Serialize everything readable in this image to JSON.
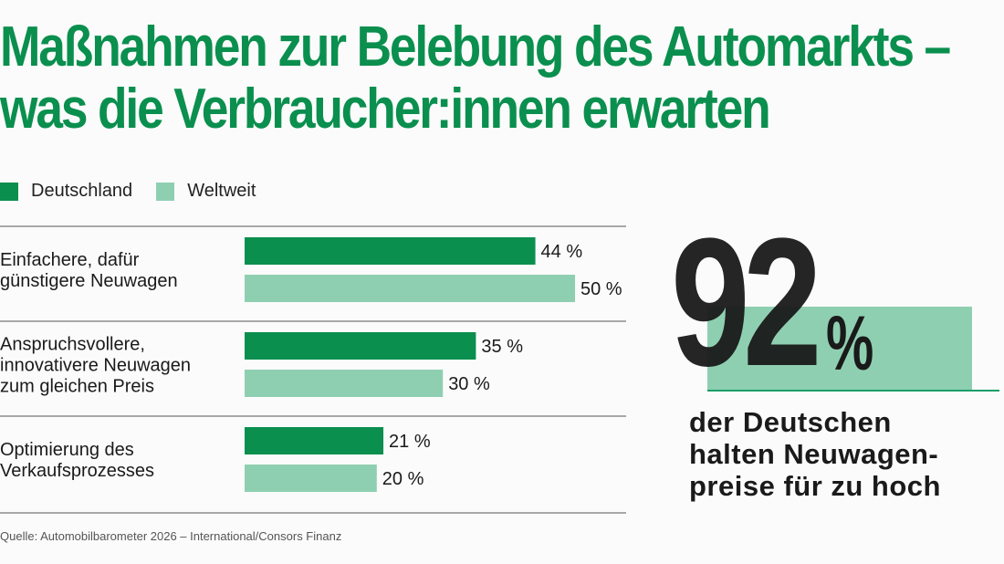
{
  "title": {
    "line1": "Maßnahmen zur Belebung des Automarkts –",
    "line2": "was die Verbraucher:innen erwarten"
  },
  "colors": {
    "deutschland": "#0a8f4e",
    "weltweit": "#8fcfb1",
    "title": "#0a8f4e"
  },
  "legend": {
    "deutschland": "Deutschland",
    "weltweit": "Weltweit"
  },
  "chart_data": {
    "type": "bar",
    "orientation": "horizontal",
    "categories": [
      [
        "Einfachere, dafür",
        "günstigere Neuwagen"
      ],
      [
        "Anspruchsvollere,",
        "innovativere Neuwagen",
        "zum gleichen Preis"
      ],
      [
        "Optimierung des",
        "Verkaufsprozesses"
      ]
    ],
    "series": [
      {
        "name": "Deutschland",
        "values": [
          44,
          35,
          21
        ],
        "labels": [
          "44 %",
          "35 %",
          "21 %"
        ]
      },
      {
        "name": "Weltweit",
        "values": [
          50,
          30,
          20
        ],
        "labels": [
          "50 %",
          "30 %",
          "20 %"
        ]
      }
    ],
    "xlim": [
      0,
      50
    ],
    "grid": false,
    "legend_position": "top-left"
  },
  "highlight": {
    "number": "92",
    "percent": "%",
    "caption": [
      "der Deutschen",
      "halten Neuwagen-",
      "preise für zu hoch"
    ]
  },
  "source": "Quelle: Automobilbarometer 2026 – International/Consors Finanz"
}
